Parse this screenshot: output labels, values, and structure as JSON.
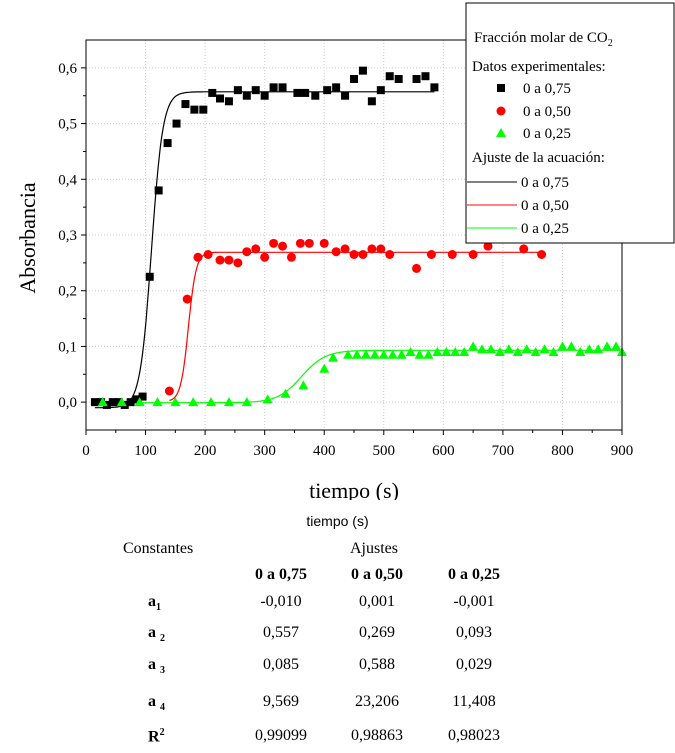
{
  "chart_data": {
    "type": "scatter",
    "xlabel": "tiempo (s)",
    "ylabel": "Absorbancia",
    "xlim": [
      0,
      900
    ],
    "ylim": [
      -0.05,
      0.65
    ],
    "x_ticks": [
      "0",
      "100",
      "200",
      "300",
      "400",
      "500",
      "600",
      "700",
      "800",
      "900"
    ],
    "y_ticks": [
      "0,0",
      "0,1",
      "0,2",
      "0,3",
      "0,4",
      "0,5",
      "0,6"
    ],
    "grid": true,
    "legend_position": "top-right",
    "legend": {
      "title_main": "Fracción molar de CO",
      "title_sub": "2",
      "experimental_heading": "Datos experimentales:",
      "fit_heading": "Ajuste de la acuación:"
    },
    "series": [
      {
        "name": "0 a 0,75",
        "marker": "square",
        "color": "#000000",
        "points": [
          [
            15,
            0.0
          ],
          [
            25,
            0.0
          ],
          [
            35,
            -0.005
          ],
          [
            45,
            0.0
          ],
          [
            55,
            0.0
          ],
          [
            65,
            -0.005
          ],
          [
            75,
            0.0
          ],
          [
            85,
            0.005
          ],
          [
            95,
            0.01
          ],
          [
            107,
            0.225
          ],
          [
            122,
            0.38
          ],
          [
            137,
            0.465
          ],
          [
            152,
            0.5
          ],
          [
            167,
            0.535
          ],
          [
            182,
            0.525
          ],
          [
            197,
            0.525
          ],
          [
            212,
            0.555
          ],
          [
            225,
            0.545
          ],
          [
            240,
            0.54
          ],
          [
            255,
            0.56
          ],
          [
            270,
            0.55
          ],
          [
            285,
            0.56
          ],
          [
            300,
            0.55
          ],
          [
            315,
            0.565
          ],
          [
            330,
            0.565
          ],
          [
            355,
            0.555
          ],
          [
            368,
            0.555
          ],
          [
            385,
            0.55
          ],
          [
            405,
            0.56
          ],
          [
            420,
            0.565
          ],
          [
            435,
            0.55
          ],
          [
            450,
            0.58
          ],
          [
            465,
            0.595
          ],
          [
            480,
            0.54
          ],
          [
            495,
            0.56
          ],
          [
            510,
            0.585
          ],
          [
            525,
            0.58
          ],
          [
            555,
            0.58
          ],
          [
            570,
            0.585
          ],
          [
            585,
            0.565
          ]
        ]
      },
      {
        "name": "0 a 0,50",
        "marker": "circle",
        "color": "#ff0000",
        "points": [
          [
            140,
            0.02
          ],
          [
            170,
            0.185
          ],
          [
            188,
            0.26
          ],
          [
            205,
            0.265
          ],
          [
            225,
            0.255
          ],
          [
            240,
            0.255
          ],
          [
            255,
            0.25
          ],
          [
            270,
            0.27
          ],
          [
            285,
            0.275
          ],
          [
            300,
            0.26
          ],
          [
            315,
            0.285
          ],
          [
            330,
            0.28
          ],
          [
            345,
            0.26
          ],
          [
            360,
            0.285
          ],
          [
            375,
            0.285
          ],
          [
            400,
            0.285
          ],
          [
            420,
            0.27
          ],
          [
            435,
            0.275
          ],
          [
            450,
            0.265
          ],
          [
            465,
            0.265
          ],
          [
            480,
            0.275
          ],
          [
            495,
            0.275
          ],
          [
            510,
            0.265
          ],
          [
            555,
            0.24
          ],
          [
            580,
            0.265
          ],
          [
            615,
            0.265
          ],
          [
            650,
            0.265
          ],
          [
            675,
            0.28
          ],
          [
            735,
            0.275
          ],
          [
            765,
            0.265
          ]
        ]
      },
      {
        "name": "0 a 0,25",
        "marker": "triangle",
        "color": "#00ff00",
        "points": [
          [
            28,
            0.0
          ],
          [
            60,
            0.0
          ],
          [
            90,
            0.0
          ],
          [
            120,
            0.0
          ],
          [
            150,
            0.0
          ],
          [
            180,
            0.0
          ],
          [
            210,
            0.0
          ],
          [
            240,
            0.0
          ],
          [
            270,
            0.0
          ],
          [
            305,
            0.005
          ],
          [
            335,
            0.015
          ],
          [
            365,
            0.03
          ],
          [
            400,
            0.06
          ],
          [
            415,
            0.08
          ],
          [
            440,
            0.085
          ],
          [
            455,
            0.085
          ],
          [
            470,
            0.085
          ],
          [
            485,
            0.085
          ],
          [
            500,
            0.085
          ],
          [
            515,
            0.085
          ],
          [
            530,
            0.085
          ],
          [
            545,
            0.09
          ],
          [
            560,
            0.085
          ],
          [
            575,
            0.085
          ],
          [
            590,
            0.09
          ],
          [
            605,
            0.09
          ],
          [
            620,
            0.09
          ],
          [
            635,
            0.09
          ],
          [
            650,
            0.1
          ],
          [
            665,
            0.095
          ],
          [
            680,
            0.095
          ],
          [
            695,
            0.09
          ],
          [
            710,
            0.095
          ],
          [
            725,
            0.09
          ],
          [
            740,
            0.095
          ],
          [
            755,
            0.09
          ],
          [
            770,
            0.095
          ],
          [
            785,
            0.09
          ],
          [
            800,
            0.1
          ],
          [
            815,
            0.1
          ],
          [
            830,
            0.09
          ],
          [
            845,
            0.095
          ],
          [
            860,
            0.095
          ],
          [
            875,
            0.1
          ],
          [
            890,
            0.1
          ],
          [
            900,
            0.09
          ]
        ]
      }
    ],
    "fits": [
      {
        "name": "0 a 0,75",
        "color": "#000000",
        "a1": -0.01,
        "a2": 0.557,
        "center": 110,
        "width": 9.569,
        "x_range": [
          15,
          585
        ]
      },
      {
        "name": "0 a 0,50",
        "color": "#ff0000",
        "a1": 0.001,
        "a2": 0.269,
        "center": 172,
        "width": 6.5,
        "x_range": [
          140,
          765
        ]
      },
      {
        "name": "0 a 0,25",
        "color": "#00ff00",
        "a1": -0.001,
        "a2": 0.093,
        "center": 362,
        "width": 20,
        "x_range": [
          28,
          900
        ]
      }
    ]
  },
  "table": {
    "xlabel_repeat": "tiempo (s)",
    "constants_header": "Constantes",
    "fits_header": "Ajustes",
    "columns": [
      "0 a 0,75",
      "0 a 0,50",
      "0 a 0,25"
    ],
    "rows": [
      {
        "name": "a",
        "sub": "1",
        "sup": "",
        "values": [
          "-0,010",
          "0,001",
          "-0,001"
        ]
      },
      {
        "name": "a",
        "sub": "2",
        "sup": "",
        "values": [
          "0,557",
          "0,269",
          "0,093"
        ]
      },
      {
        "name": "a",
        "sub": "3",
        "sup": "",
        "values": [
          "0,085",
          "0,588",
          "0,029"
        ]
      },
      {
        "name": "a",
        "sub": "4",
        "sup": "",
        "values": [
          "9,569",
          "23,206",
          "11,408"
        ]
      },
      {
        "name": "R",
        "sub": "",
        "sup": "2",
        "values": [
          "0,99099",
          "0,98863",
          "0,98023"
        ]
      }
    ]
  }
}
